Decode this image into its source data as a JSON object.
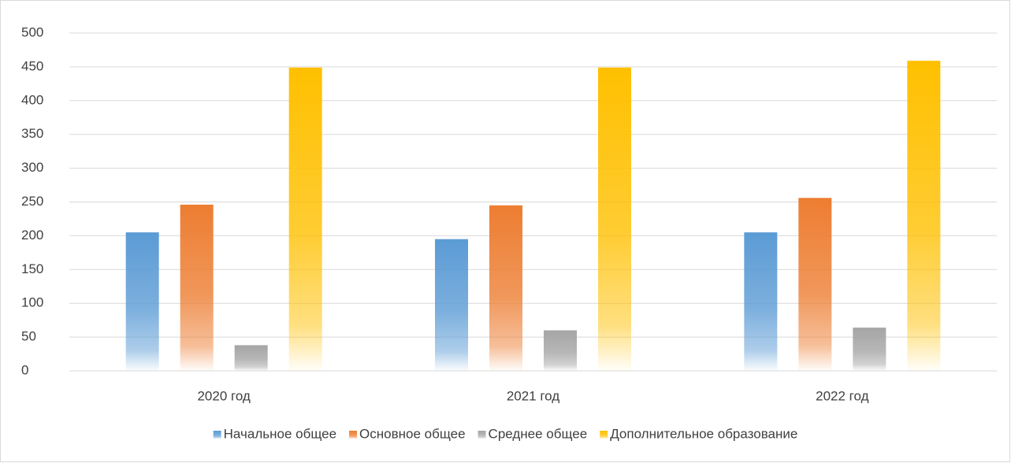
{
  "chart_data": {
    "type": "bar",
    "categories": [
      "2020 год",
      "2021 год",
      "2022 год"
    ],
    "series": [
      {
        "name": "Начальное общее",
        "color": "#5b9bd5",
        "values": [
          205,
          195,
          205
        ]
      },
      {
        "name": "Основное общее",
        "color": "#ed7d31",
        "values": [
          246,
          245,
          256
        ]
      },
      {
        "name": "Среднее общее",
        "color": "#a5a5a5",
        "values": [
          38,
          60,
          64
        ]
      },
      {
        "name": "Дополнительное образование",
        "color": "#ffc000",
        "values": [
          449,
          449,
          459
        ]
      }
    ],
    "ylim": [
      0,
      500
    ],
    "yticks": [
      0,
      50,
      100,
      150,
      200,
      250,
      300,
      350,
      400,
      450,
      500
    ],
    "grid": true,
    "legend": "bottom"
  }
}
